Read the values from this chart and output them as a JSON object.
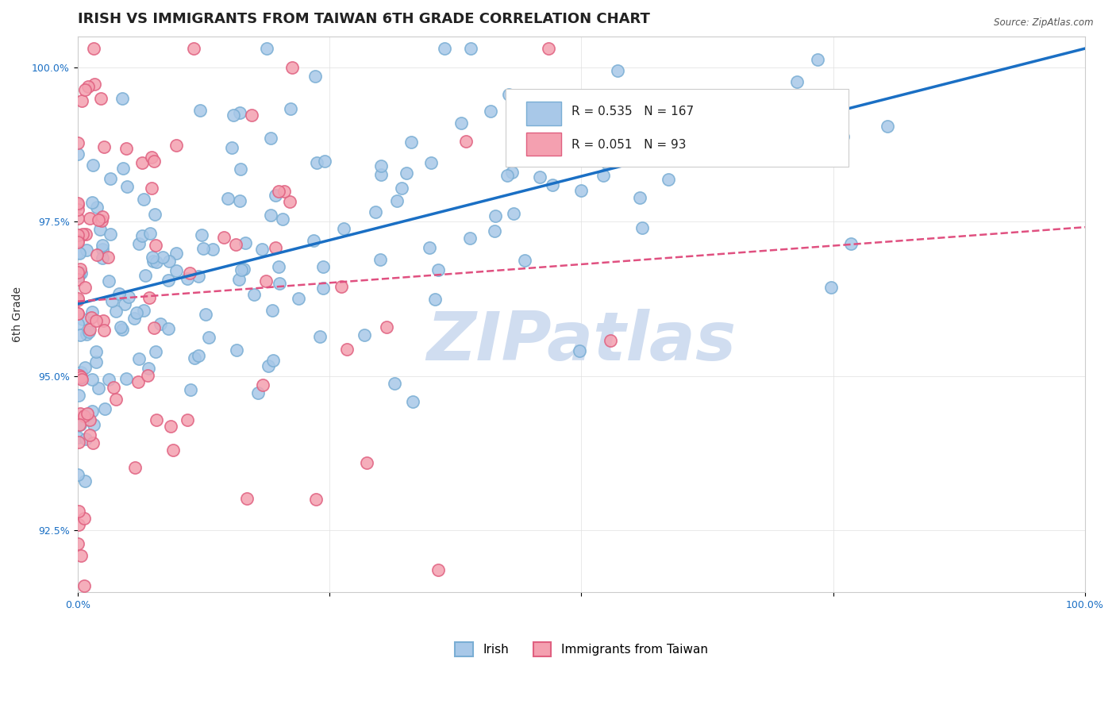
{
  "title": "IRISH VS IMMIGRANTS FROM TAIWAN 6TH GRADE CORRELATION CHART",
  "source": "Source: ZipAtlas.com",
  "ylabel": "6th Grade",
  "xlabel": "",
  "xlim": [
    0.0,
    1.0
  ],
  "ylim_pct": [
    0.915,
    1.005
  ],
  "yticks": [
    0.925,
    0.95,
    0.975,
    1.0
  ],
  "ytick_labels": [
    "92.5%",
    "95.0%",
    "97.5%",
    "100.0%"
  ],
  "xticks": [
    0.0,
    0.25,
    0.5,
    0.75,
    1.0
  ],
  "xtick_labels": [
    "0.0%",
    "",
    "",
    "",
    "100.0%"
  ],
  "legend_irish": "Irish",
  "legend_taiwan": "Immigrants from Taiwan",
  "irish_R": 0.535,
  "irish_N": 167,
  "taiwan_R": 0.051,
  "taiwan_N": 93,
  "irish_color": "#a8c8e8",
  "irish_edge": "#7aaed4",
  "taiwan_color": "#f4a0b0",
  "taiwan_edge": "#e06080",
  "irish_line_color": "#1a6fc4",
  "taiwan_line_color": "#e05080",
  "background_color": "#ffffff",
  "watermark": "ZIPatlas",
  "watermark_color": "#d0ddf0",
  "title_fontsize": 13,
  "axis_label_fontsize": 10,
  "tick_fontsize": 9,
  "legend_fontsize": 11
}
